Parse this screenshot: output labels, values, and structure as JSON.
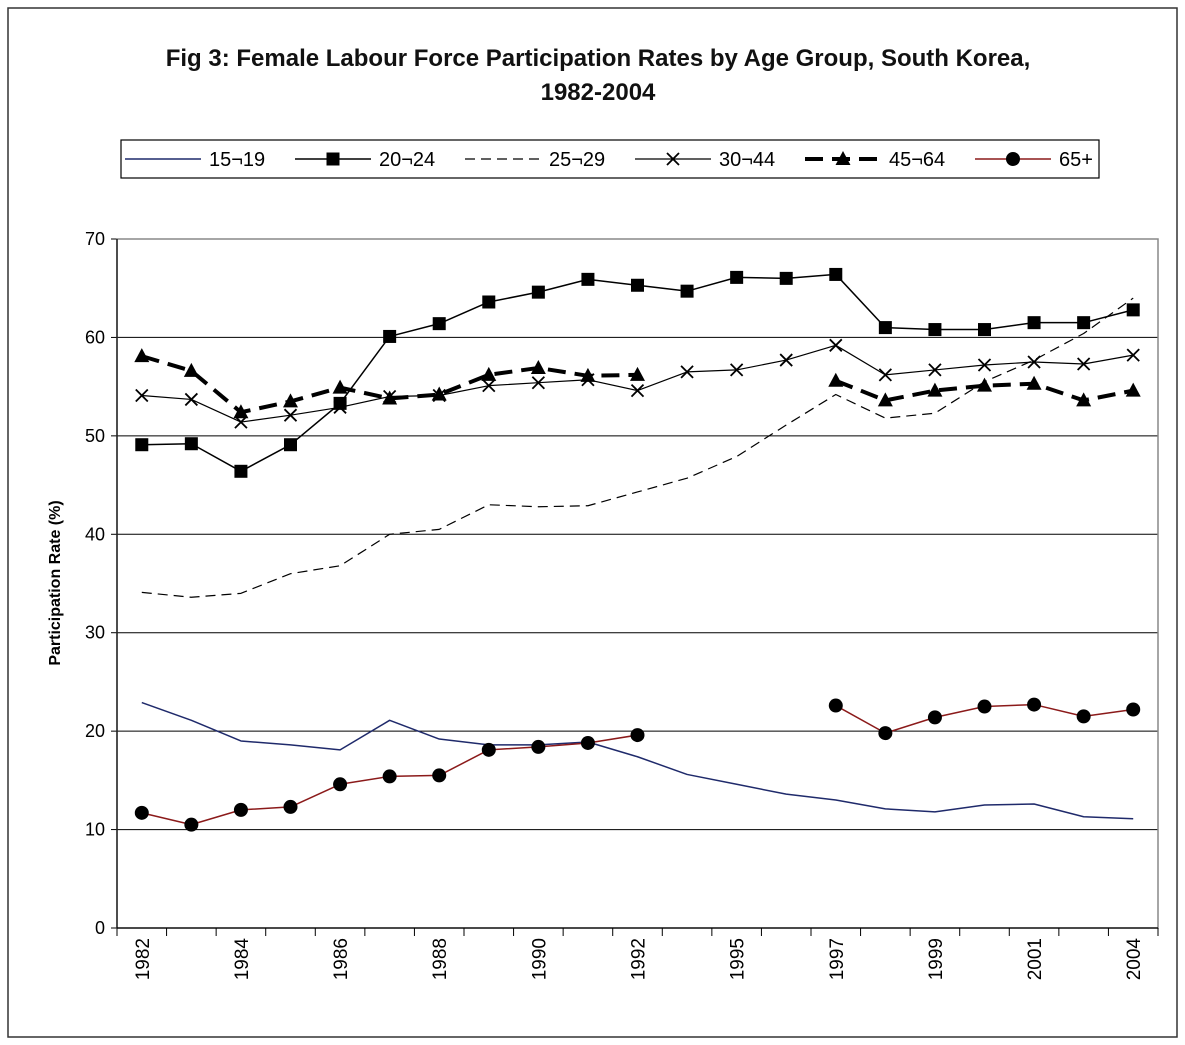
{
  "chart_data": {
    "type": "line",
    "title": "Fig 3: Female Labour Force Participation Rates by Age Group, South Korea, 1982-2004",
    "y_label": "Participation Rate (%)",
    "categories": [
      "1982",
      null,
      "1984",
      null,
      "1986",
      null,
      "1988",
      null,
      "1990",
      null,
      "1992",
      null,
      "1995",
      null,
      "1997",
      null,
      "1999",
      null,
      "2001",
      null,
      "2004"
    ],
    "ylim": [
      0,
      70
    ],
    "yticks": [
      0,
      10,
      20,
      30,
      40,
      50,
      60,
      70
    ],
    "grid": true,
    "legend": "top",
    "series": [
      {
        "name": "15¬19",
        "color": "#1f2a6b",
        "width": 1.5,
        "dash": "solid",
        "marker": "none",
        "values": [
          22.9,
          21.1,
          19.0,
          18.6,
          18.1,
          21.1,
          19.2,
          18.6,
          18.6,
          18.9,
          17.4,
          15.6,
          14.6,
          13.6,
          13.0,
          12.1,
          11.8,
          12.5,
          12.6,
          11.3,
          11.1
        ]
      },
      {
        "name": "20¬24",
        "color": "#000000",
        "width": 1.5,
        "dash": "solid",
        "marker": "square",
        "values": [
          49.1,
          49.2,
          46.4,
          49.1,
          53.3,
          60.1,
          61.4,
          63.6,
          64.6,
          65.9,
          65.3,
          64.7,
          66.1,
          66.0,
          66.4,
          61.0,
          60.8,
          60.8,
          61.5,
          61.5,
          62.8
        ]
      },
      {
        "name": "25¬29",
        "color": "#000000",
        "width": 1.2,
        "dash": "dashed",
        "marker": "none",
        "values": [
          34.1,
          33.6,
          34.0,
          36.0,
          36.8,
          40.0,
          40.5,
          43.0,
          42.8,
          42.9,
          44.3,
          45.7,
          47.9,
          51.1,
          54.2,
          51.8,
          52.3,
          55.5,
          57.7,
          60.4,
          64.0
        ]
      },
      {
        "name": "30¬44",
        "color": "#000000",
        "width": 1.2,
        "dash": "solid",
        "marker": "cross",
        "values": [
          54.1,
          53.7,
          51.4,
          52.1,
          52.9,
          54.0,
          54.1,
          55.1,
          55.4,
          55.7,
          54.6,
          56.5,
          56.7,
          57.7,
          59.2,
          56.2,
          56.7,
          57.2,
          57.5,
          57.3,
          58.2
        ]
      },
      {
        "name": "45¬64",
        "color": "#000000",
        "width": 4,
        "dash": "long-dash",
        "marker": "triangle",
        "values": [
          58.1,
          56.6,
          52.4,
          53.5,
          54.9,
          53.8,
          54.2,
          56.2,
          56.9,
          56.1,
          56.2,
          null,
          null,
          null,
          55.6,
          53.6,
          54.6,
          55.1,
          55.3,
          53.6,
          54.6
        ]
      },
      {
        "name": "65+",
        "color": "#8b1a1a",
        "marker_color": "#000000",
        "width": 1.5,
        "dash": "solid",
        "marker": "circle",
        "values": [
          11.7,
          10.5,
          12.0,
          12.3,
          14.6,
          15.4,
          15.5,
          18.1,
          18.4,
          18.8,
          19.6,
          null,
          null,
          null,
          22.6,
          19.8,
          21.4,
          22.5,
          22.7,
          21.5,
          22.2
        ]
      }
    ]
  }
}
